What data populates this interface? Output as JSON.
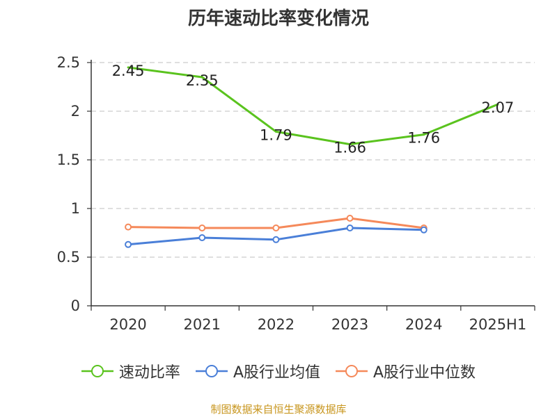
{
  "title": "历年速动比率变化情况",
  "source": "制图数据来自恒生聚源数据库",
  "chart_data": {
    "type": "line",
    "categories": [
      "2020",
      "2021",
      "2022",
      "2023",
      "2024",
      "2025H1"
    ],
    "y_ticks": [
      "0",
      "0.5",
      "1",
      "1.5",
      "2",
      "2.5"
    ],
    "ylim": [
      0,
      2.5
    ],
    "grid": "horizontal dashed",
    "legend_position": "bottom",
    "series": [
      {
        "name": "速动比率",
        "color": "#5ac31e",
        "values": [
          2.45,
          2.35,
          1.79,
          1.66,
          1.76,
          2.07
        ],
        "labels": [
          "2.45",
          "2.35",
          "1.79",
          "1.66",
          "1.76",
          "2.07"
        ],
        "show_labels": true
      },
      {
        "name": "A股行业均值",
        "color": "#4a7fd8",
        "values": [
          0.63,
          0.7,
          0.68,
          0.8,
          0.78,
          null
        ],
        "show_labels": false
      },
      {
        "name": "A股行业中位数",
        "color": "#f5895a",
        "values": [
          0.81,
          0.8,
          0.8,
          0.9,
          0.8,
          null
        ],
        "show_labels": false
      }
    ]
  }
}
